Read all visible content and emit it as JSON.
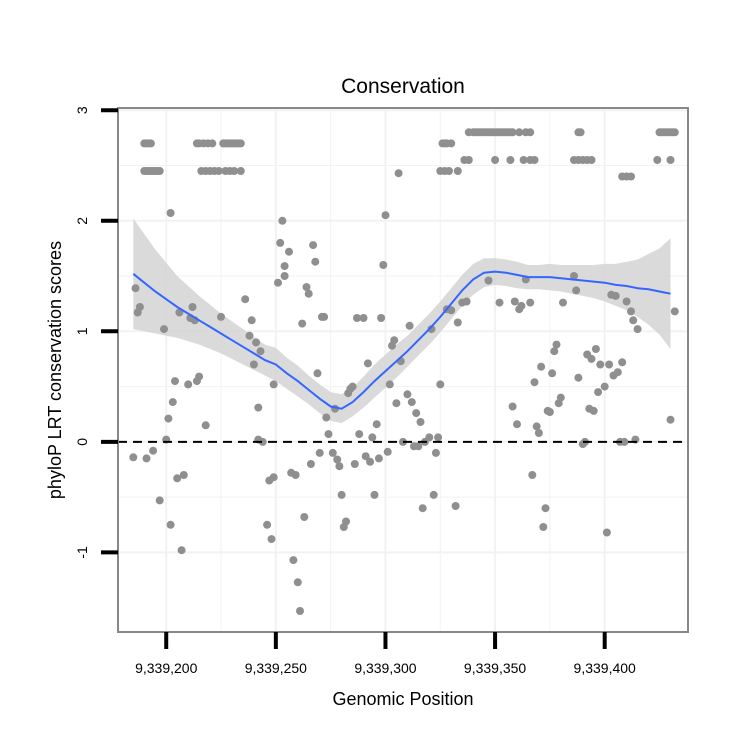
{
  "chart_data": {
    "type": "scatter",
    "title": "Conservation",
    "xlabel": "Genomic Position",
    "ylabel": "phyloP LRT conservation scores",
    "xlim": [
      9339178,
      9339438
    ],
    "ylim": [
      -1.72,
      3.02
    ],
    "x_ticks": [
      9339200,
      9339250,
      9339300,
      9339350,
      9339400
    ],
    "x_tick_labels": [
      "9,339,200",
      "9,339,250",
      "9,339,300",
      "9,339,350",
      "9,339,400"
    ],
    "y_ticks": [
      -1,
      0,
      1,
      2,
      3
    ],
    "y_tick_labels": [
      "-1",
      "0",
      "1",
      "2",
      "3"
    ],
    "grid": true,
    "reference_line": {
      "y": 0,
      "style": "dashed"
    },
    "colors": {
      "points": "#8f8f8f",
      "smooth": "#3366ff",
      "band": "#d4d4d4",
      "grid": "#f2f2f2",
      "border": "#888888",
      "refline": "#000000"
    },
    "smooth": {
      "x": [
        9339185,
        9339190,
        9339195,
        9339200,
        9339205,
        9339210,
        9339215,
        9339220,
        9339225,
        9339230,
        9339235,
        9339240,
        9339245,
        9339250,
        9339255,
        9339260,
        9339265,
        9339270,
        9339275,
        9339280,
        9339285,
        9339290,
        9339295,
        9339300,
        9339305,
        9339310,
        9339315,
        9339320,
        9339325,
        9339330,
        9339335,
        9339340,
        9339345,
        9339350,
        9339355,
        9339360,
        9339365,
        9339370,
        9339375,
        9339380,
        9339385,
        9339390,
        9339395,
        9339400,
        9339405,
        9339410,
        9339415,
        9339420,
        9339425,
        9339430
      ],
      "y": [
        1.52,
        1.44,
        1.36,
        1.29,
        1.22,
        1.16,
        1.1,
        1.04,
        0.98,
        0.92,
        0.86,
        0.8,
        0.74,
        0.7,
        0.62,
        0.55,
        0.47,
        0.39,
        0.32,
        0.3,
        0.36,
        0.45,
        0.55,
        0.64,
        0.73,
        0.82,
        0.92,
        1.02,
        1.13,
        1.25,
        1.37,
        1.47,
        1.53,
        1.54,
        1.53,
        1.51,
        1.49,
        1.49,
        1.49,
        1.48,
        1.47,
        1.46,
        1.45,
        1.44,
        1.42,
        1.41,
        1.39,
        1.38,
        1.36,
        1.34
      ],
      "lower": [
        1.02,
        1.0,
        0.98,
        0.96,
        0.94,
        0.91,
        0.88,
        0.84,
        0.8,
        0.75,
        0.7,
        0.65,
        0.6,
        0.55,
        0.48,
        0.41,
        0.34,
        0.26,
        0.19,
        0.17,
        0.23,
        0.31,
        0.4,
        0.49,
        0.58,
        0.68,
        0.78,
        0.88,
        0.99,
        1.11,
        1.23,
        1.33,
        1.4,
        1.42,
        1.41,
        1.39,
        1.38,
        1.38,
        1.37,
        1.36,
        1.34,
        1.32,
        1.3,
        1.27,
        1.23,
        1.19,
        1.13,
        1.06,
        0.97,
        0.84
      ],
      "upper": [
        2.02,
        1.88,
        1.74,
        1.62,
        1.5,
        1.41,
        1.32,
        1.24,
        1.16,
        1.09,
        1.02,
        0.95,
        0.88,
        0.85,
        0.76,
        0.69,
        0.6,
        0.52,
        0.45,
        0.43,
        0.49,
        0.59,
        0.7,
        0.79,
        0.88,
        0.96,
        1.06,
        1.16,
        1.27,
        1.39,
        1.51,
        1.61,
        1.66,
        1.66,
        1.65,
        1.63,
        1.6,
        1.6,
        1.61,
        1.6,
        1.6,
        1.6,
        1.6,
        1.61,
        1.61,
        1.63,
        1.65,
        1.7,
        1.75,
        1.84
      ]
    },
    "points": [
      [
        9339190,
        2.45
      ],
      [
        9339191,
        2.45
      ],
      [
        9339192,
        2.45
      ],
      [
        9339193,
        2.45
      ],
      [
        9339194,
        2.45
      ],
      [
        9339195,
        2.45
      ],
      [
        9339196,
        2.45
      ],
      [
        9339197,
        2.45
      ],
      [
        9339190,
        2.7
      ],
      [
        9339191,
        2.7
      ],
      [
        9339192,
        2.7
      ],
      [
        9339193,
        2.7
      ],
      [
        9339214,
        2.7
      ],
      [
        9339215,
        2.7
      ],
      [
        9339217,
        2.7
      ],
      [
        9339219,
        2.7
      ],
      [
        9339221,
        2.7
      ],
      [
        9339226,
        2.7
      ],
      [
        9339227,
        2.7
      ],
      [
        9339228,
        2.7
      ],
      [
        9339229,
        2.7
      ],
      [
        9339230,
        2.7
      ],
      [
        9339231,
        2.7
      ],
      [
        9339232,
        2.7
      ],
      [
        9339233,
        2.7
      ],
      [
        9339234,
        2.7
      ],
      [
        9339216,
        2.45
      ],
      [
        9339218,
        2.45
      ],
      [
        9339220,
        2.45
      ],
      [
        9339222,
        2.45
      ],
      [
        9339224,
        2.45
      ],
      [
        9339227,
        2.45
      ],
      [
        9339229,
        2.45
      ],
      [
        9339231,
        2.45
      ],
      [
        9339234,
        2.45
      ],
      [
        9339326,
        2.7
      ],
      [
        9339327,
        2.7
      ],
      [
        9339328,
        2.7
      ],
      [
        9339330,
        2.7
      ],
      [
        9339325,
        2.45
      ],
      [
        9339327,
        2.45
      ],
      [
        9339329,
        2.45
      ],
      [
        9339333,
        2.45
      ],
      [
        9339336,
        2.55
      ],
      [
        9339338,
        2.55
      ],
      [
        9339338,
        2.8
      ],
      [
        9339340,
        2.8
      ],
      [
        9339341,
        2.8
      ],
      [
        9339342,
        2.8
      ],
      [
        9339343,
        2.8
      ],
      [
        9339344,
        2.8
      ],
      [
        9339345,
        2.8
      ],
      [
        9339346,
        2.8
      ],
      [
        9339347,
        2.8
      ],
      [
        9339348,
        2.8
      ],
      [
        9339349,
        2.8
      ],
      [
        9339350,
        2.8
      ],
      [
        9339351,
        2.8
      ],
      [
        9339352,
        2.8
      ],
      [
        9339353,
        2.8
      ],
      [
        9339354,
        2.8
      ],
      [
        9339355,
        2.8
      ],
      [
        9339356,
        2.8
      ],
      [
        9339357,
        2.8
      ],
      [
        9339358,
        2.8
      ],
      [
        9339361,
        2.8
      ],
      [
        9339364,
        2.8
      ],
      [
        9339366,
        2.8
      ],
      [
        9339350,
        2.55
      ],
      [
        9339357,
        2.55
      ],
      [
        9339363,
        2.55
      ],
      [
        9339366,
        2.55
      ],
      [
        9339368,
        2.55
      ],
      [
        9339388,
        2.8
      ],
      [
        9339389,
        2.8
      ],
      [
        9339386,
        2.55
      ],
      [
        9339388,
        2.55
      ],
      [
        9339390,
        2.55
      ],
      [
        9339392,
        2.55
      ],
      [
        9339394,
        2.55
      ],
      [
        9339408,
        2.4
      ],
      [
        9339410,
        2.4
      ],
      [
        9339412,
        2.4
      ],
      [
        9339424,
        2.55
      ],
      [
        9339430,
        2.55
      ],
      [
        9339425,
        2.8
      ],
      [
        9339426,
        2.8
      ],
      [
        9339427,
        2.8
      ],
      [
        9339428,
        2.8
      ],
      [
        9339429,
        2.8
      ],
      [
        9339430,
        2.8
      ],
      [
        9339431,
        2.8
      ],
      [
        9339432,
        2.8
      ],
      [
        9339186,
        1.39
      ],
      [
        9339187,
        1.17
      ],
      [
        9339188,
        1.22
      ],
      [
        9339185,
        -0.14
      ],
      [
        9339191,
        -0.15
      ],
      [
        9339194,
        -0.08
      ],
      [
        9339197,
        -0.53
      ],
      [
        9339199,
        1.02
      ],
      [
        9339200,
        0.02
      ],
      [
        9339201,
        0.21
      ],
      [
        9339202,
        2.07
      ],
      [
        9339202,
        -0.75
      ],
      [
        9339203,
        0.36
      ],
      [
        9339204,
        0.55
      ],
      [
        9339205,
        -0.33
      ],
      [
        9339206,
        1.17
      ],
      [
        9339207,
        -0.98
      ],
      [
        9339208,
        -0.3
      ],
      [
        9339210,
        0.52
      ],
      [
        9339211,
        1.12
      ],
      [
        9339212,
        1.22
      ],
      [
        9339213,
        1.1
      ],
      [
        9339214,
        0.55
      ],
      [
        9339215,
        0.59
      ],
      [
        9339218,
        0.15
      ],
      [
        9339225,
        1.13
      ],
      [
        9339236,
        1.29
      ],
      [
        9339238,
        0.96
      ],
      [
        9339239,
        1.1
      ],
      [
        9339240,
        0.7
      ],
      [
        9339241,
        0.9
      ],
      [
        9339242,
        0.31
      ],
      [
        9339242,
        0.02
      ],
      [
        9339243,
        0.82
      ],
      [
        9339244,
        0.0
      ],
      [
        9339246,
        -0.75
      ],
      [
        9339247,
        -0.35
      ],
      [
        9339248,
        -0.88
      ],
      [
        9339249,
        0.52
      ],
      [
        9339249,
        -0.32
      ],
      [
        9339251,
        1.44
      ],
      [
        9339252,
        1.8
      ],
      [
        9339253,
        2.0
      ],
      [
        9339254,
        1.5
      ],
      [
        9339254,
        1.59
      ],
      [
        9339256,
        1.72
      ],
      [
        9339257,
        -0.28
      ],
      [
        9339258,
        -1.07
      ],
      [
        9339259,
        -0.3
      ],
      [
        9339260,
        -1.27
      ],
      [
        9339261,
        -1.53
      ],
      [
        9339262,
        1.07
      ],
      [
        9339263,
        -0.68
      ],
      [
        9339264,
        1.4
      ],
      [
        9339265,
        1.34
      ],
      [
        9339266,
        -0.2
      ],
      [
        9339267,
        1.78
      ],
      [
        9339268,
        1.63
      ],
      [
        9339269,
        0.62
      ],
      [
        9339270,
        -0.1
      ],
      [
        9339271,
        1.13
      ],
      [
        9339272,
        1.13
      ],
      [
        9339273,
        0.22
      ],
      [
        9339274,
        0.07
      ],
      [
        9339276,
        -0.1
      ],
      [
        9339277,
        0.3
      ],
      [
        9339278,
        -0.16
      ],
      [
        9339279,
        -0.22
      ],
      [
        9339280,
        -0.48
      ],
      [
        9339281,
        -0.77
      ],
      [
        9339282,
        -0.72
      ],
      [
        9339283,
        0.44
      ],
      [
        9339284,
        0.48
      ],
      [
        9339285,
        0.5
      ],
      [
        9339286,
        -0.2
      ],
      [
        9339287,
        1.12
      ],
      [
        9339288,
        0.07
      ],
      [
        9339290,
        1.12
      ],
      [
        9339291,
        -0.13
      ],
      [
        9339292,
        0.71
      ],
      [
        9339293,
        -0.18
      ],
      [
        9339294,
        0.04
      ],
      [
        9339295,
        -0.48
      ],
      [
        9339296,
        0.16
      ],
      [
        9339297,
        -0.15
      ],
      [
        9339298,
        1.12
      ],
      [
        9339299,
        1.6
      ],
      [
        9339300,
        2.05
      ],
      [
        9339301,
        -0.09
      ],
      [
        9339302,
        0.52
      ],
      [
        9339303,
        0.87
      ],
      [
        9339304,
        0.92
      ],
      [
        9339305,
        0.35
      ],
      [
        9339306,
        2.43
      ],
      [
        9339307,
        0.73
      ],
      [
        9339308,
        0.0
      ],
      [
        9339310,
        0.43
      ],
      [
        9339311,
        1.05
      ],
      [
        9339312,
        0.36
      ],
      [
        9339313,
        -0.04
      ],
      [
        9339314,
        0.26
      ],
      [
        9339315,
        -0.04
      ],
      [
        9339316,
        0.18
      ],
      [
        9339317,
        -0.6
      ],
      [
        9339318,
        0.0
      ],
      [
        9339320,
        0.04
      ],
      [
        9339321,
        1.02
      ],
      [
        9339322,
        -0.48
      ],
      [
        9339323,
        -0.1
      ],
      [
        9339324,
        0.04
      ],
      [
        9339325,
        0.52
      ],
      [
        9339328,
        1.2
      ],
      [
        9339330,
        1.19
      ],
      [
        9339332,
        -0.58
      ],
      [
        9339333,
        1.08
      ],
      [
        9339335,
        1.26
      ],
      [
        9339337,
        1.27
      ],
      [
        9339347,
        1.46
      ],
      [
        9339352,
        1.26
      ],
      [
        9339358,
        0.32
      ],
      [
        9339359,
        1.27
      ],
      [
        9339360,
        0.16
      ],
      [
        9339361,
        1.2
      ],
      [
        9339362,
        1.23
      ],
      [
        9339364,
        1.47
      ],
      [
        9339366,
        1.26
      ],
      [
        9339367,
        -0.3
      ],
      [
        9339368,
        0.54
      ],
      [
        9339369,
        0.14
      ],
      [
        9339370,
        0.08
      ],
      [
        9339371,
        0.68
      ],
      [
        9339372,
        -0.77
      ],
      [
        9339373,
        -0.6
      ],
      [
        9339374,
        0.28
      ],
      [
        9339375,
        0.27
      ],
      [
        9339376,
        0.62
      ],
      [
        9339377,
        0.82
      ],
      [
        9339378,
        0.88
      ],
      [
        9339379,
        0.35
      ],
      [
        9339380,
        0.4
      ],
      [
        9339381,
        1.26
      ],
      [
        9339386,
        1.5
      ],
      [
        9339387,
        1.37
      ],
      [
        9339388,
        0.58
      ],
      [
        9339390,
        -0.02
      ],
      [
        9339391,
        0.0
      ],
      [
        9339392,
        0.79
      ],
      [
        9339393,
        0.3
      ],
      [
        9339394,
        0.75
      ],
      [
        9339395,
        0.28
      ],
      [
        9339396,
        0.84
      ],
      [
        9339397,
        0.45
      ],
      [
        9339398,
        0.7
      ],
      [
        9339400,
        0.5
      ],
      [
        9339401,
        -0.82
      ],
      [
        9339402,
        0.7
      ],
      [
        9339403,
        1.33
      ],
      [
        9339404,
        0.6
      ],
      [
        9339405,
        1.32
      ],
      [
        9339406,
        0.63
      ],
      [
        9339407,
        0.0
      ],
      [
        9339408,
        0.72
      ],
      [
        9339409,
        0.0
      ],
      [
        9339410,
        1.27
      ],
      [
        9339412,
        1.18
      ],
      [
        9339413,
        1.1
      ],
      [
        9339414,
        0.02
      ],
      [
        9339415,
        1.02
      ],
      [
        9339430,
        0.2
      ],
      [
        9339432,
        1.18
      ]
    ]
  }
}
